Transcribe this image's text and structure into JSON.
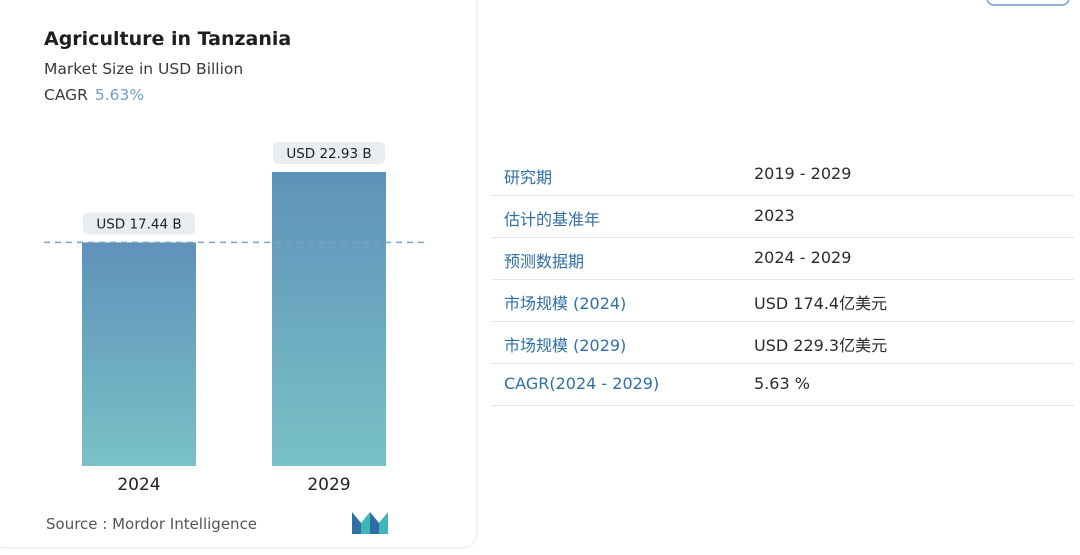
{
  "card": {
    "title": "Agriculture in Tanzania",
    "subtitle": "Market Size in USD Billion",
    "cagr_label": "CAGR",
    "cagr_value": "5.63%",
    "source": "Source : Mordor Intelligence",
    "logo_icon": "mordor-intelligence-logo-icon"
  },
  "chart_data": {
    "type": "bar",
    "title": "Agriculture in Tanzania",
    "subtitle": "Market Size in USD Billion",
    "categories": [
      "2024",
      "2029"
    ],
    "values": [
      17.44,
      22.93
    ],
    "data_labels": [
      "USD 17.44 B",
      "USD 22.93 B"
    ],
    "reference_line": {
      "value": 17.44,
      "style": "dashed"
    },
    "ylim": [
      0,
      23
    ],
    "grid": false,
    "colors": {
      "bar_top": "#5f92b9",
      "bar_bottom": "#79c1c7",
      "label_bg": "#e9edf0",
      "dash": "#7fa2c3"
    }
  },
  "table": {
    "rows": [
      {
        "label": "研究期",
        "value": "2019 - 2029"
      },
      {
        "label": "估计的基准年",
        "value": "2023"
      },
      {
        "label": "预测数据期",
        "value": "2024 - 2029"
      },
      {
        "label": "市场规模 (2024)",
        "value": "USD 174.4亿美元"
      },
      {
        "label": "市场规模 (2029)",
        "value": "USD 229.3亿美元"
      },
      {
        "label": "CAGR(2024 - 2029)",
        "value": "5.63 %"
      }
    ],
    "colors": {
      "label": "#2f6fa6",
      "divider": "#e1e4e8"
    }
  }
}
